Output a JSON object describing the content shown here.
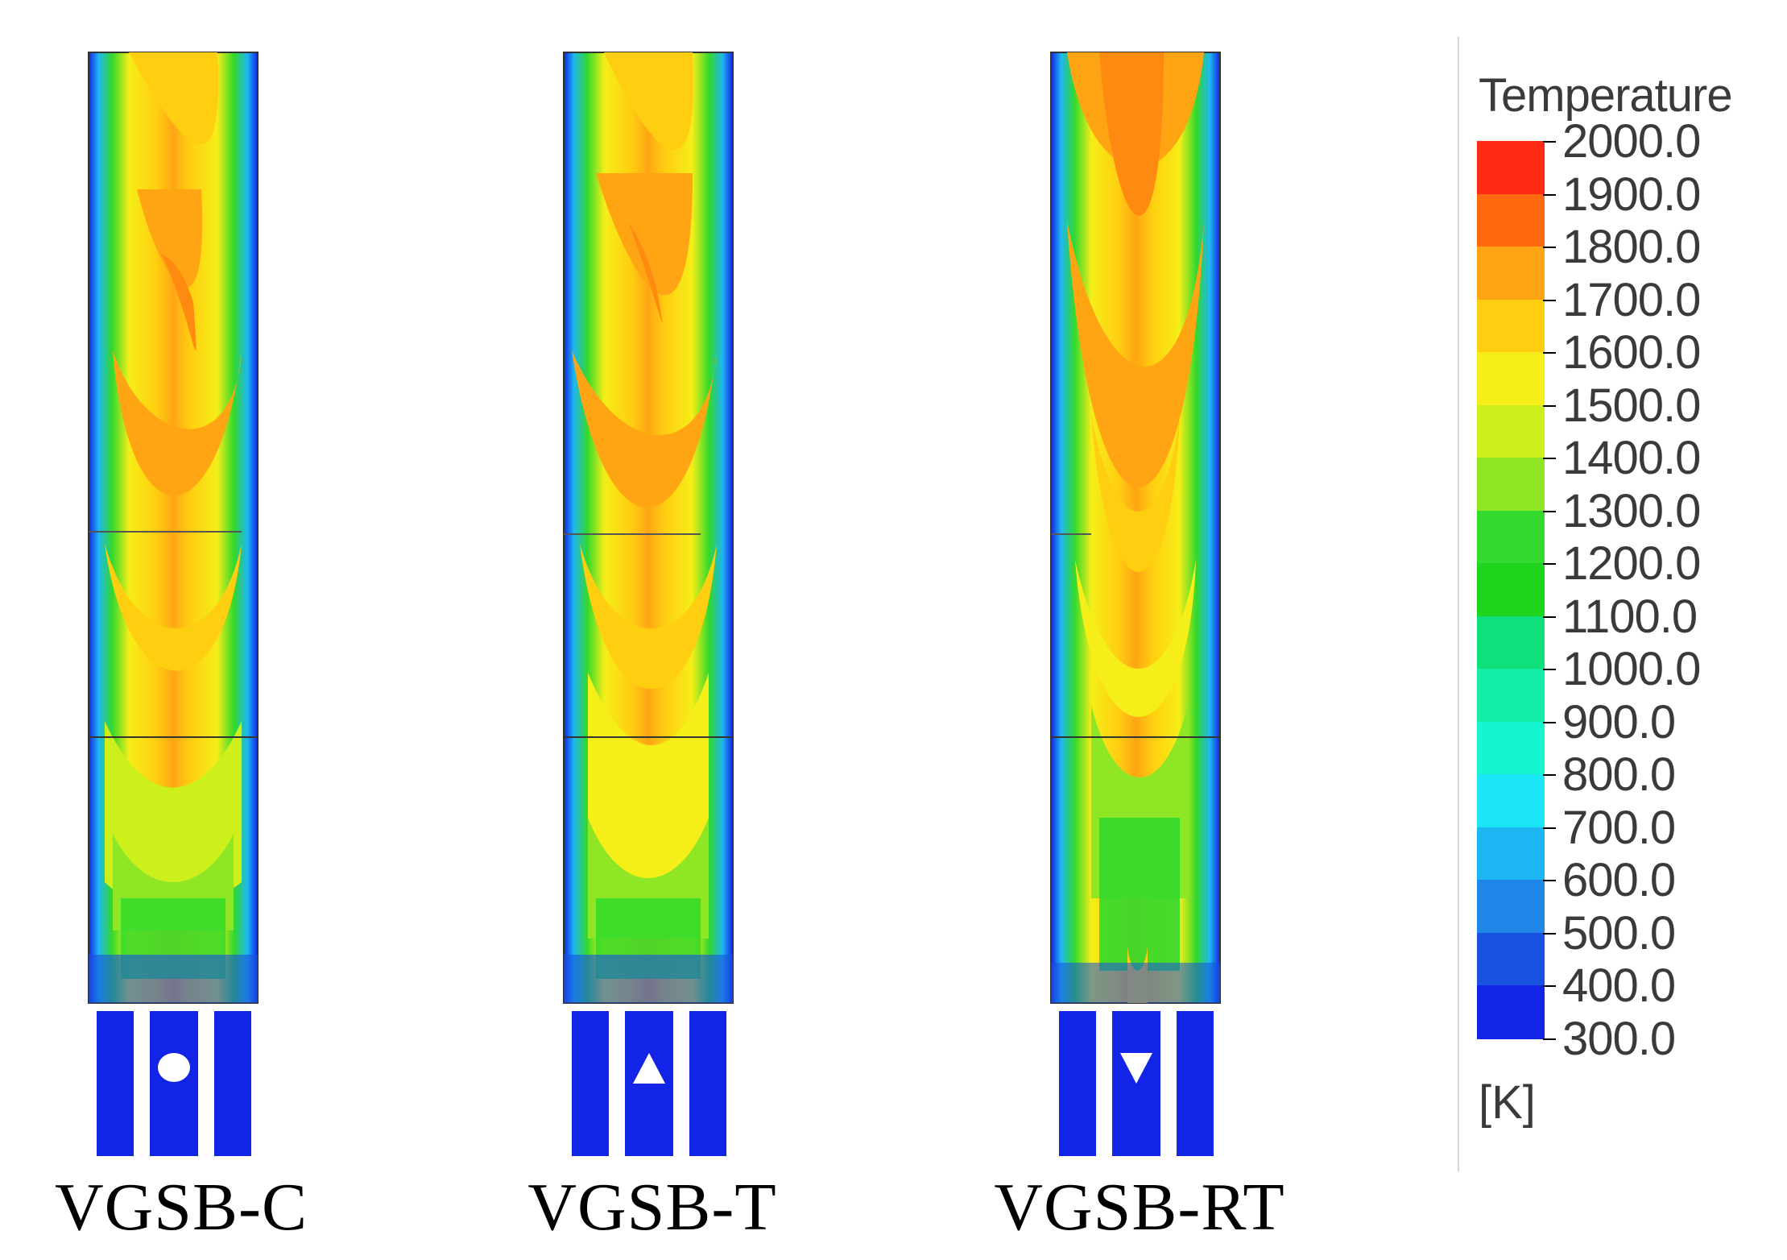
{
  "cases": [
    {
      "label": "VGSB-C",
      "shape": "circle"
    },
    {
      "label": "VGSB-T",
      "shape": "triangle-up"
    },
    {
      "label": "VGSB-RT",
      "shape": "triangle-down"
    }
  ],
  "legend": {
    "title": "Temperature",
    "unit": "[K]",
    "values": [
      "2000.0",
      "1900.0",
      "1800.0",
      "1700.0",
      "1600.0",
      "1500.0",
      "1400.0",
      "1300.0",
      "1200.0",
      "1100.0",
      "1000.0",
      "900.0",
      "800.0",
      "700.0",
      "600.0",
      "500.0",
      "400.0",
      "300.0"
    ],
    "colors": [
      "#ff2a12",
      "#ff6a10",
      "#ffa514",
      "#ffce10",
      "#f5ee18",
      "#cdf01c",
      "#8ee624",
      "#33d92c",
      "#1fd51e",
      "#10e07c",
      "#12eda8",
      "#16f5d2",
      "#1be6f5",
      "#1db6f2",
      "#2086e8",
      "#1a52e0",
      "#1224e6"
    ]
  }
}
